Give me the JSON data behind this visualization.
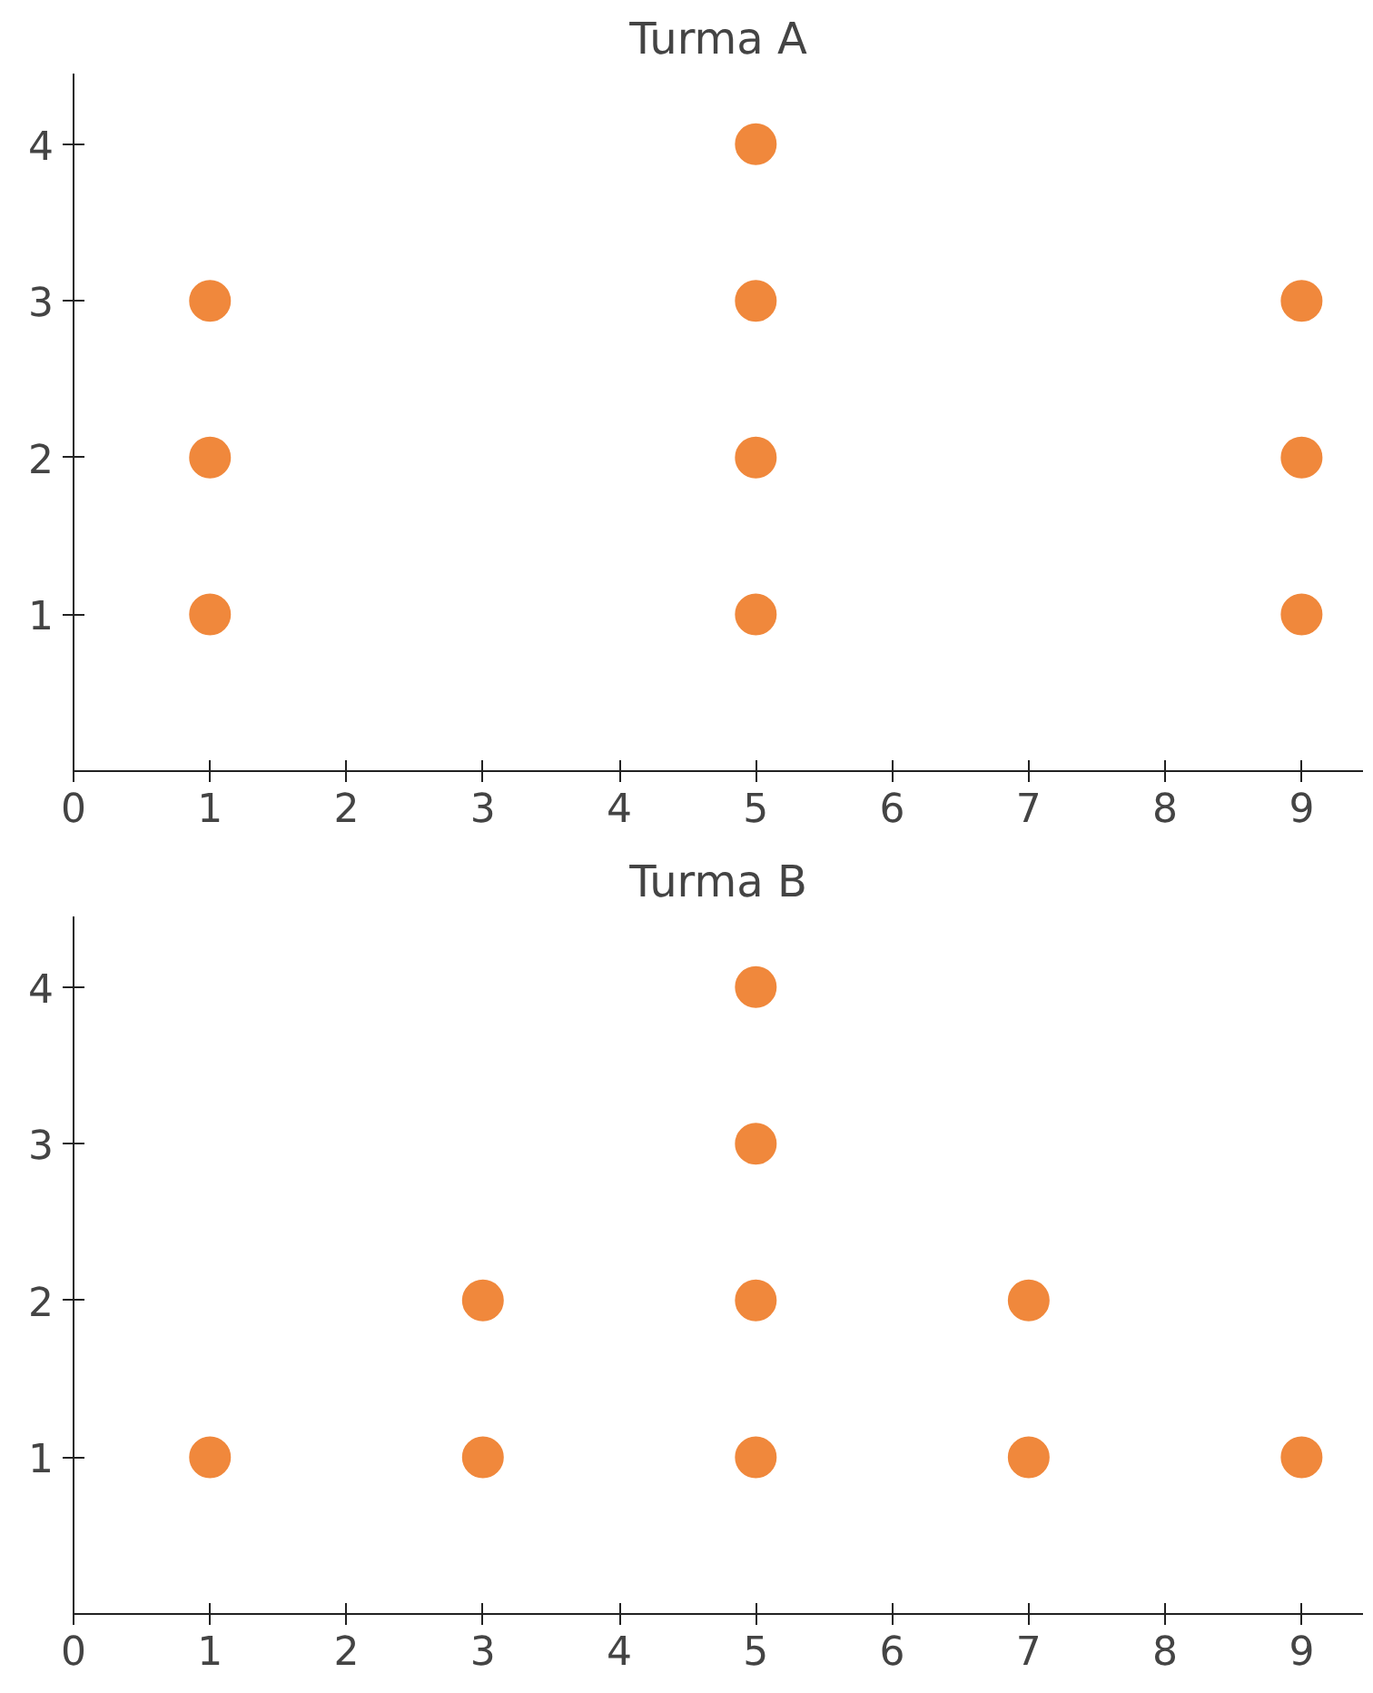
{
  "chart_data": [
    {
      "type": "scatter",
      "title": "Turma A",
      "x": [
        1,
        1,
        1,
        5,
        5,
        5,
        5,
        9,
        9,
        9
      ],
      "series": [
        {
          "color": "#f0883c",
          "values": [
            1,
            2,
            3,
            1,
            2,
            3,
            4,
            1,
            2,
            3
          ]
        }
      ],
      "xlim": [
        0,
        9.45
      ],
      "ylim": [
        0,
        4.45
      ],
      "xticks": [
        0,
        1,
        2,
        3,
        4,
        5,
        6,
        7,
        8,
        9
      ],
      "yticks": [
        1,
        2,
        3,
        4
      ],
      "grid": false,
      "marker": "circle"
    },
    {
      "type": "scatter",
      "title": "Turma B",
      "x": [
        1,
        3,
        3,
        5,
        5,
        5,
        5,
        7,
        7,
        9
      ],
      "series": [
        {
          "color": "#f0883c",
          "values": [
            1,
            1,
            2,
            1,
            2,
            3,
            4,
            1,
            2,
            1
          ]
        }
      ],
      "xlim": [
        0,
        9.45
      ],
      "ylim": [
        0,
        4.45
      ],
      "xticks": [
        0,
        1,
        2,
        3,
        4,
        5,
        6,
        7,
        8,
        9
      ],
      "yticks": [
        1,
        2,
        3,
        4
      ],
      "grid": false,
      "marker": "circle"
    }
  ]
}
